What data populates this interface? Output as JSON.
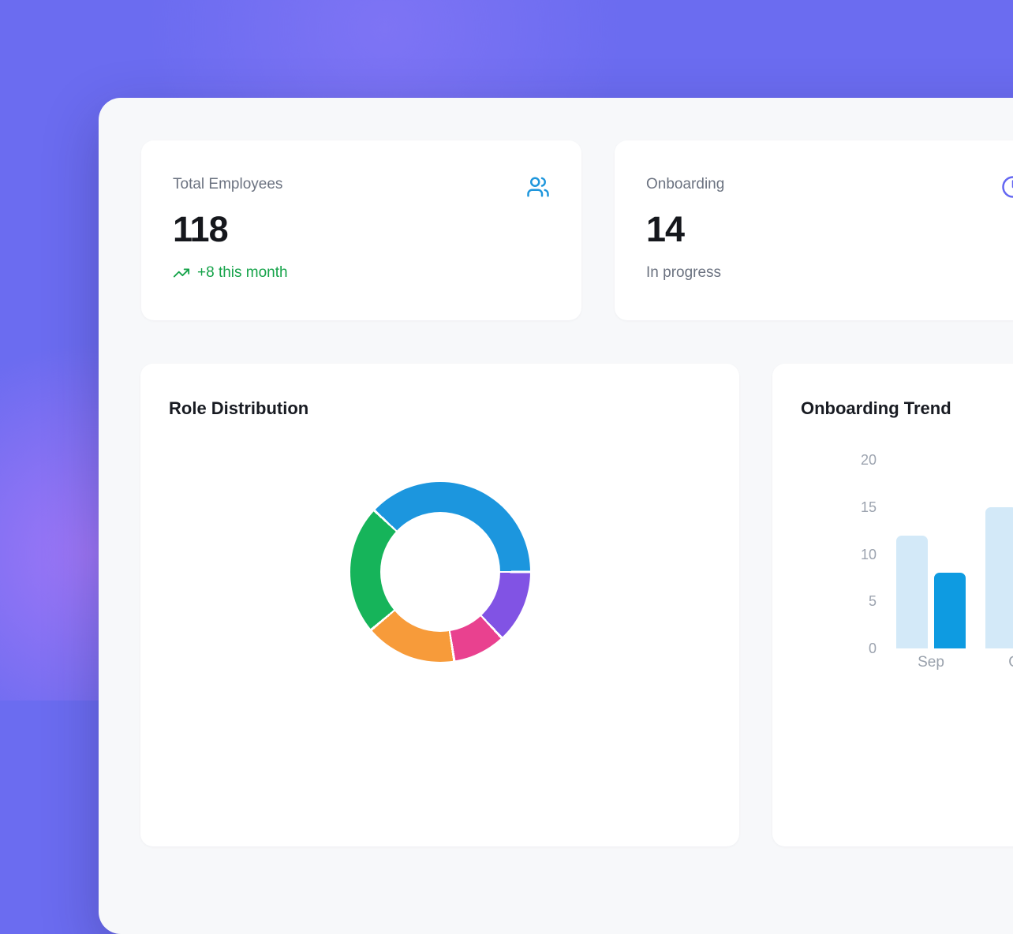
{
  "theme": {
    "background": "#6B6CF0",
    "panel_bg": "#F7F8FA",
    "card_bg": "#FFFFFF",
    "label_color": "#6B7280",
    "value_color": "#15171C",
    "tick_color": "#9CA3AF"
  },
  "stat_cards": [
    {
      "label": "Total Employees",
      "value": "118",
      "trend_text": "+8 this month",
      "trend_color": "#16A34A",
      "icon": "users-icon",
      "icon_color": "#1E96DC"
    },
    {
      "label": "Onboarding",
      "value": "14",
      "sub_text": "In progress",
      "icon": "clock-icon",
      "icon_color": "#6467F2"
    }
  ],
  "chart_cards": [
    {
      "title": "Role Distribution"
    },
    {
      "title": "Onboarding Trend"
    }
  ],
  "chart_data": [
    {
      "type": "pie",
      "subtype": "doughnut",
      "title": "Role Distribution",
      "start_angle_deg_from_top": 313,
      "segments": [
        {
          "name": "segment-blue",
          "color": "#1C96DE",
          "angle_deg": 137,
          "percent": 38
        },
        {
          "name": "segment-purple",
          "color": "#8153E4",
          "angle_deg": 47,
          "percent": 13
        },
        {
          "name": "segment-pink",
          "color": "#E9418F",
          "angle_deg": 34,
          "percent": 9.5
        },
        {
          "name": "segment-orange",
          "color": "#F79B3A",
          "angle_deg": 59,
          "percent": 16.5
        },
        {
          "name": "segment-green",
          "color": "#16B45A",
          "angle_deg": 83,
          "percent": 23
        }
      ]
    },
    {
      "type": "bar",
      "title": "Onboarding Trend",
      "categories": [
        "Sep",
        "Oct"
      ],
      "series": [
        {
          "name": "series-light-blue",
          "color": "#D3E9F8",
          "values": [
            12,
            15
          ]
        },
        {
          "name": "series-dark-blue",
          "color": "#0E9BE1",
          "values": [
            8,
            null
          ]
        }
      ],
      "ylim": [
        0,
        20
      ],
      "yticks": [
        0,
        5,
        10,
        15,
        20
      ],
      "grid": false,
      "legend_position": "none"
    }
  ]
}
